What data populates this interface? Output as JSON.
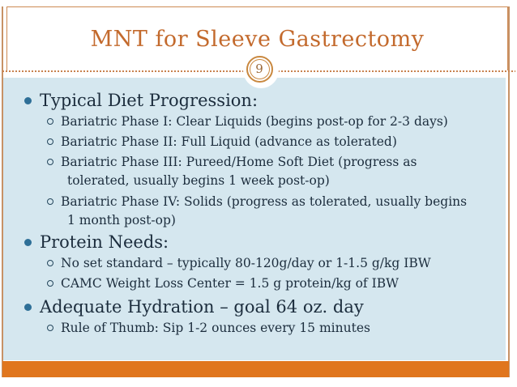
{
  "slide": {
    "title": "MNT for Sleeve Gastrectomy",
    "page_number": "9",
    "bullets": [
      {
        "level": 1,
        "lines": [
          "Typical Diet Progression:"
        ]
      },
      {
        "level": 2,
        "lines": [
          "Bariatric Phase I: Clear Liquids (begins post-op for 2-3 days)"
        ]
      },
      {
        "level": 2,
        "lines": [
          "Bariatric Phase II: Full Liquid (advance as tolerated)"
        ]
      },
      {
        "level": 2,
        "lines": [
          "Bariatric Phase III: Pureed/Home Soft Diet (progress as",
          "tolerated, usually begins 1 week post-op)"
        ]
      },
      {
        "level": 2,
        "lines": [
          "Bariatric Phase IV: Solids (progress as tolerated, usually begins",
          "1 month post-op)"
        ]
      },
      {
        "level": 1,
        "lines": [
          "Protein Needs:"
        ]
      },
      {
        "level": 2,
        "lines": [
          "No set standard – typically 80-120g/day or 1-1.5 g/kg IBW"
        ]
      },
      {
        "level": 2,
        "lines": [
          "CAMC Weight Loss Center = 1.5 g protein/kg of IBW"
        ]
      },
      {
        "level": 1,
        "lines": [
          "Adequate Hydration – goal 64 oz. day"
        ]
      },
      {
        "level": 2,
        "lines": [
          "Rule of Thumb: Sip 1-2 ounces every 15 minutes"
        ]
      }
    ],
    "colors": {
      "title_text": "#c36a2d",
      "header_border": "#cd8a54",
      "dotted_divider": "#c8824e",
      "badge_ring": "#c9883f",
      "badge_number": "#9c6a3a",
      "content_background": "#d5e7ef",
      "body_text": "#1c2d3d",
      "level1_bullet_dot": "#2e6f97",
      "level2_bullet_circle": "#24465c",
      "bottom_bar": "#e0761e",
      "frame_line": "#c79266"
    }
  }
}
